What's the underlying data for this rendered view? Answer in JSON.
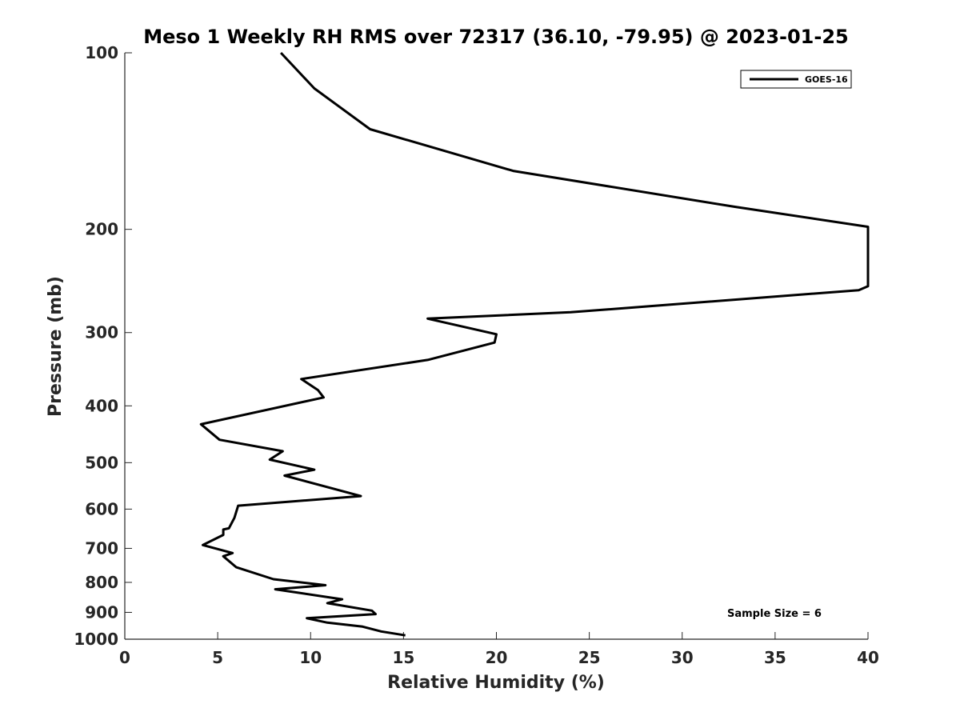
{
  "chart_data": {
    "type": "line",
    "title": "Meso 1 Weekly RH RMS over 72317 (36.10, -79.95) @ 2023-01-25",
    "xlabel": "Relative Humidity (%)",
    "ylabel": "Pressure (mb)",
    "xlim": [
      0,
      40
    ],
    "ylim": [
      1000,
      100
    ],
    "yscale": "log",
    "y_inverted": true,
    "x_ticks": [
      0,
      5,
      10,
      15,
      20,
      25,
      30,
      35,
      40
    ],
    "y_ticks": [
      100,
      200,
      300,
      400,
      500,
      600,
      700,
      800,
      900,
      1000
    ],
    "grid": false,
    "legend_position": "top-right",
    "annotation": "Sample Size = 6",
    "series": [
      {
        "name": "GOES-16",
        "color": "#000000",
        "x": [
          8.4,
          10.2,
          13.2,
          20.9,
          32.8,
          40.0,
          40.0,
          39.5,
          24.0,
          16.3,
          20.0,
          19.9,
          16.3,
          9.5,
          10.4,
          10.7,
          4.1,
          5.1,
          8.5,
          7.8,
          10.2,
          8.6,
          12.7,
          6.1,
          5.9,
          5.6,
          5.3,
          5.3,
          4.2,
          5.8,
          5.3,
          6.0,
          8.0,
          10.8,
          8.1,
          11.7,
          10.9,
          13.3,
          13.5,
          9.8,
          10.9,
          12.8,
          13.8,
          15.1
        ],
        "y": [
          100,
          115,
          135,
          159,
          183,
          198,
          250,
          254,
          277,
          284,
          302,
          312,
          334,
          360,
          376,
          387,
          430,
          457,
          478,
          494,
          514,
          526,
          570,
          592,
          621,
          647,
          650,
          664,
          691,
          713,
          722,
          754,
          790,
          809,
          822,
          855,
          868,
          894,
          906,
          921,
          937,
          952,
          970,
          985
        ]
      }
    ]
  }
}
